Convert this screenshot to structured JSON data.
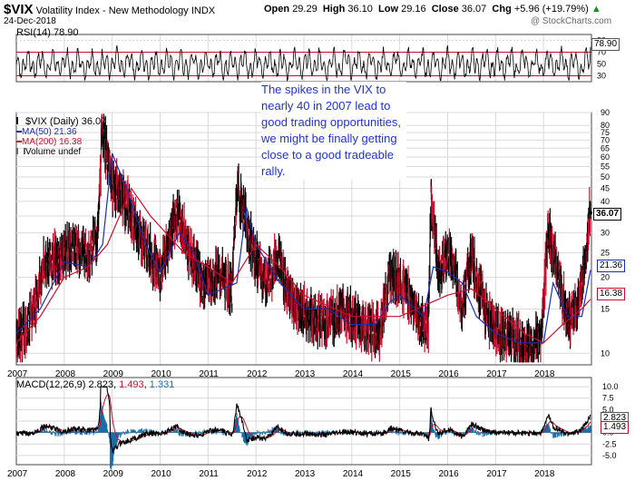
{
  "header": {
    "symbol": "$VIX",
    "name": "Volatility Index - New Methodology",
    "exchange": "INDX",
    "date": "24-Dec-2018",
    "open_label": "Open",
    "open": "29.29",
    "high_label": "High",
    "high": "36.10",
    "low_label": "Low",
    "low": "29.16",
    "close_label": "Close",
    "close": "36.07",
    "chg_label": "Chg",
    "chg": "+5.96 (+19.79%)",
    "chg_arrow": "▲",
    "watermark": "@ StockCharts.com"
  },
  "annotation": "The spikes in the VIX to nearly 40 in 2007 lead to good trading opportunities, we might be finally getting close to a good tradeable rally.",
  "rsi": {
    "label": "RSI(14)",
    "value": "78.90",
    "ticks": [
      "90",
      "70",
      "50",
      "30"
    ],
    "badge": "78.90"
  },
  "price": {
    "legend_main": "$VIX (Daily) 36.07",
    "legend_ma50": "MA(50) 21.36",
    "legend_ma200": "MA(200) 16.38",
    "legend_volume": "Volume undef",
    "ticks": [
      "90",
      "80",
      "75",
      "70",
      "65",
      "60",
      "55",
      "50",
      "45",
      "40",
      "35",
      "30",
      "25",
      "20",
      "15",
      "10"
    ],
    "badges": {
      "close": "36.07",
      "ma50": "21.36",
      "ma200": "16.38"
    }
  },
  "macd": {
    "label": "MACD(12,26,9)",
    "macd": "2.823",
    "signal": "1.493",
    "hist": "1.331",
    "ticks": [
      "10.0",
      "7.5",
      "5.0",
      "2.5",
      "0.0",
      "-2.5",
      "-5.0"
    ],
    "badges": [
      "2.823",
      "1.493"
    ]
  },
  "x_labels": [
    "2007",
    "2008",
    "2009",
    "2010",
    "2011",
    "2012",
    "2013",
    "2014",
    "2015",
    "2016",
    "2017",
    "2018"
  ],
  "colors": {
    "ma50": "#1a2fb0",
    "ma200": "#c8102e",
    "price_up": "#000000",
    "price_down": "#c8102e",
    "macd": "#000000",
    "signal": "#c8102e",
    "hist": "#1a6fa8",
    "note": "#2233cc",
    "grid": "#d9d9d9"
  },
  "chart_data": {
    "type": "line",
    "title": "$VIX Volatility Index - New Methodology INDX",
    "x_range": [
      "2007-01-01",
      "2018-12-24"
    ],
    "ylim": [
      9,
      90
    ],
    "log_scale": true,
    "grid": true,
    "series": [
      {
        "name": "$VIX (Daily)",
        "x": [
          2007.0,
          2007.3,
          2007.6,
          2007.9,
          2008.2,
          2008.5,
          2008.7,
          2008.8,
          2008.9,
          2009.0,
          2009.2,
          2009.5,
          2009.8,
          2010.0,
          2010.35,
          2010.6,
          2010.9,
          2011.2,
          2011.5,
          2011.6,
          2011.75,
          2011.9,
          2012.2,
          2012.45,
          2012.7,
          2013.0,
          2013.4,
          2013.8,
          2014.1,
          2014.35,
          2014.6,
          2014.8,
          2015.0,
          2015.4,
          2015.6,
          2015.65,
          2015.8,
          2016.05,
          2016.3,
          2016.5,
          2016.8,
          2017.0,
          2017.4,
          2017.7,
          2017.95,
          2018.1,
          2018.25,
          2018.5,
          2018.75,
          2018.9,
          2018.98
        ],
        "y": [
          11,
          13,
          22,
          23,
          26,
          24,
          28,
          80,
          55,
          45,
          42,
          30,
          24,
          20,
          35,
          25,
          18,
          20,
          17,
          45,
          35,
          26,
          18,
          24,
          16,
          14,
          13,
          14,
          13,
          12,
          12,
          20,
          19,
          13,
          12,
          40,
          21,
          24,
          15,
          23,
          14,
          12,
          11,
          10,
          11,
          30,
          22,
          13,
          15,
          26,
          36.07
        ]
      },
      {
        "name": "MA(50)",
        "x": [
          2007.0,
          2007.5,
          2008.0,
          2008.5,
          2008.8,
          2009.0,
          2009.3,
          2009.7,
          2010.0,
          2010.4,
          2010.7,
          2011.0,
          2011.6,
          2011.8,
          2012.0,
          2012.5,
          2013.0,
          2013.5,
          2014.0,
          2014.5,
          2014.8,
          2015.0,
          2015.5,
          2015.7,
          2016.0,
          2016.3,
          2016.6,
          2017.0,
          2017.5,
          2018.0,
          2018.2,
          2018.5,
          2018.8,
          2018.98
        ],
        "y": [
          12,
          15,
          23,
          22,
          27,
          62,
          45,
          27,
          21,
          30,
          25,
          17,
          19,
          38,
          27,
          19,
          15,
          15,
          13,
          13,
          16,
          17,
          14,
          22,
          21,
          19,
          14,
          12,
          11,
          11,
          19,
          14,
          14,
          21.36
        ]
      },
      {
        "name": "MA(200)",
        "x": [
          2007.0,
          2007.5,
          2008.0,
          2008.5,
          2008.9,
          2009.4,
          2009.8,
          2010.5,
          2011.0,
          2011.5,
          2012.0,
          2012.5,
          2013.0,
          2014.0,
          2015.0,
          2016.0,
          2016.5,
          2017.0,
          2017.6,
          2018.0,
          2018.4,
          2018.8,
          2018.98
        ],
        "y": [
          11,
          14,
          20,
          22,
          27,
          45,
          35,
          25,
          22,
          19,
          27,
          22,
          17,
          14,
          14,
          17,
          18,
          15,
          12,
          11,
          13,
          15,
          16.38
        ]
      }
    ],
    "rsi": {
      "name": "RSI(14)",
      "last": 78.9,
      "ylim": [
        20,
        100
      ]
    },
    "macd": {
      "name": "MACD(12,26,9)",
      "macd": 2.823,
      "signal": 1.493,
      "histogram": 1.331,
      "ylim": [
        -7,
        12
      ]
    }
  }
}
